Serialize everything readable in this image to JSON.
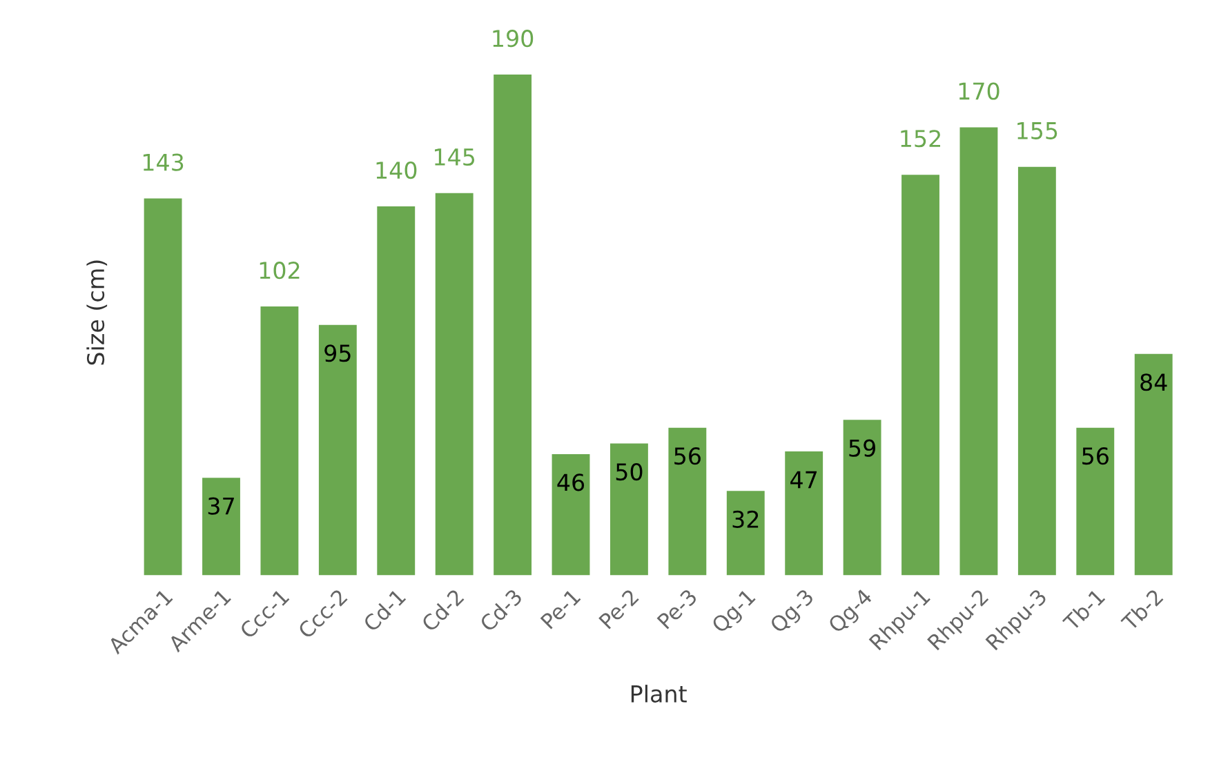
{
  "chart_data": {
    "type": "bar",
    "xlabel": "Plant",
    "ylabel": "Size (cm)",
    "categories": [
      "Acma-1",
      "Arme-1",
      "Ccc-1",
      "Ccc-2",
      "Cd-1",
      "Cd-2",
      "Cd-3",
      "Pe-1",
      "Pe-2",
      "Pe-3",
      "Qg-1",
      "Qg-3",
      "Qg-4",
      "Rhpu-1",
      "Rhpu-2",
      "Rhpu-3",
      "Tb-1",
      "Tb-2"
    ],
    "values": [
      143,
      37,
      102,
      95,
      140,
      145,
      190,
      46,
      50,
      56,
      32,
      47,
      59,
      152,
      170,
      155,
      56,
      84
    ],
    "color": "#6aa84f",
    "data_labels": true
  }
}
